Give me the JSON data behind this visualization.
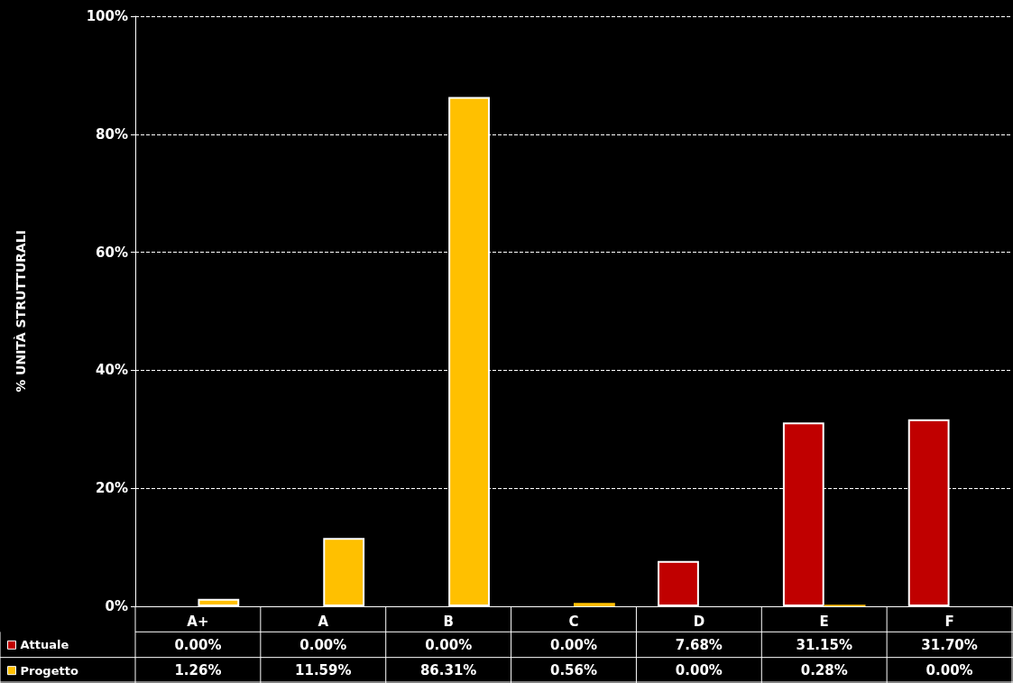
{
  "chart_data": {
    "type": "bar",
    "ylabel": "% UNITÀ STRUTTURALI",
    "categories": [
      "A+",
      "A",
      "B",
      "C",
      "D",
      "E",
      "F"
    ],
    "series": [
      {
        "name": "Attuale",
        "color": "#c00000",
        "values": [
          0,
          0,
          0,
          0,
          7.68,
          31.15,
          31.7
        ],
        "value_labels": [
          "0.00%",
          "0.00%",
          "0.00%",
          "0.00%",
          "7.68%",
          "31.15%",
          "31.70%"
        ]
      },
      {
        "name": "Progetto",
        "color": "#ffc000",
        "values": [
          1.26,
          11.59,
          86.31,
          0.56,
          0,
          0.28,
          0
        ],
        "value_labels": [
          "1.26%",
          "11.59%",
          "86.31%",
          "0.56%",
          "0.00%",
          "0.28%",
          "0.00%"
        ]
      }
    ],
    "ylim": [
      0,
      100
    ],
    "yticks": [
      {
        "value": 0,
        "label": "0%"
      },
      {
        "value": 20,
        "label": "20%"
      },
      {
        "value": 40,
        "label": "40%"
      },
      {
        "value": 60,
        "label": "60%"
      },
      {
        "value": 80,
        "label": "80%"
      },
      {
        "value": 100,
        "label": "100%"
      }
    ],
    "grid": "y",
    "legend": "bottom"
  }
}
